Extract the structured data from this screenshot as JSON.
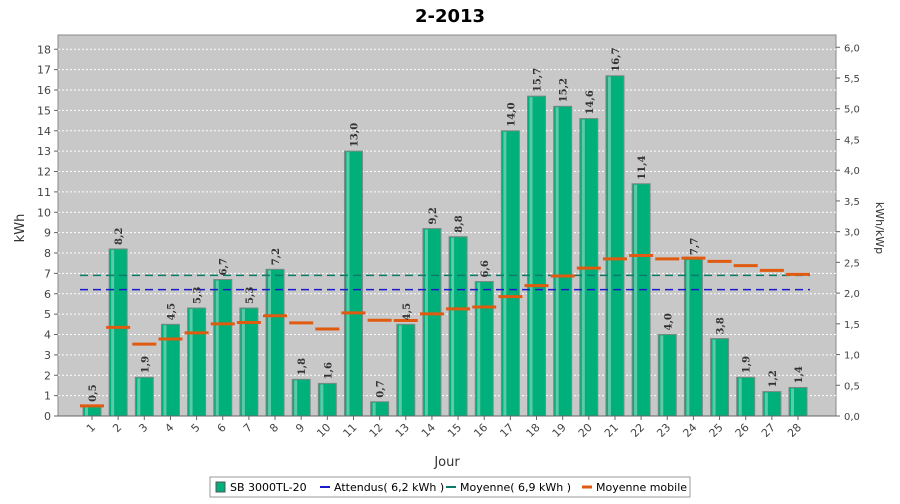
{
  "chart_data": {
    "type": "bar",
    "title": "2-2013",
    "xlabel": "Jour",
    "ylabel": "kWh",
    "ylabel_right": "kWh/kWp",
    "categories": [
      "1",
      "2",
      "3",
      "4",
      "5",
      "6",
      "7",
      "8",
      "9",
      "10",
      "11",
      "12",
      "13",
      "14",
      "15",
      "16",
      "17",
      "18",
      "19",
      "20",
      "21",
      "22",
      "23",
      "24",
      "25",
      "26",
      "27",
      "28"
    ],
    "ylim": [
      0,
      18.7
    ],
    "ylim_right": [
      0,
      6.2
    ],
    "y_ticks": [
      "0",
      "1",
      "2",
      "3",
      "4",
      "5",
      "6",
      "7",
      "8",
      "9",
      "10",
      "11",
      "12",
      "13",
      "14",
      "15",
      "16",
      "17",
      "18"
    ],
    "y_ticks_right": [
      "0,0",
      "0,5",
      "1,0",
      "1,5",
      "2,0",
      "2,5",
      "3,0",
      "3,5",
      "4,0",
      "4,5",
      "5,0",
      "5,5",
      "6,0"
    ],
    "grid": true,
    "legend_position": "bottom",
    "series": [
      {
        "name": "SB 3000TL-20",
        "kind": "bar",
        "color": "#00b07a",
        "values": [
          0.5,
          8.2,
          1.9,
          4.5,
          5.3,
          6.7,
          5.3,
          7.2,
          1.8,
          1.6,
          13.0,
          0.7,
          4.5,
          9.2,
          8.8,
          6.6,
          14.0,
          15.7,
          15.2,
          14.6,
          16.7,
          11.4,
          4.0,
          7.7,
          3.8,
          1.9,
          1.2,
          1.4
        ],
        "labels": [
          "0,5",
          "8,2",
          "1,9",
          "4,5",
          "5,3",
          "6,7",
          "5,3",
          "7,2",
          "1,8",
          "1,6",
          "13,0",
          "0,7",
          "4,5",
          "9,2",
          "8,8",
          "6,6",
          "14,0",
          "15,7",
          "15,2",
          "14,6",
          "16,7",
          "11,4",
          "4,0",
          "7,7",
          "3,8",
          "1,9",
          "1,2",
          "1,4"
        ]
      },
      {
        "name": "Attendus( 6,2 kWh )",
        "kind": "hline",
        "color": "#1a1acc",
        "value": 6.2
      },
      {
        "name": "Moyenne( 6,9 kWh )",
        "kind": "hline",
        "color": "#0a7a6a",
        "value": 6.9
      },
      {
        "name": "Moyenne mobile",
        "kind": "step",
        "color": "#e05a10",
        "values": [
          0.5,
          4.35,
          3.53,
          3.78,
          4.08,
          4.52,
          4.59,
          4.92,
          4.57,
          4.27,
          5.06,
          4.7,
          4.69,
          5.01,
          5.26,
          5.35,
          5.86,
          6.4,
          6.87,
          7.26,
          7.71,
          7.88,
          7.71,
          7.75,
          7.59,
          7.38,
          7.15,
          6.95
        ]
      }
    ]
  },
  "colors": {
    "plot_background": "#c8c8c8",
    "grid": "#ffffff",
    "bar_fill": "#00b07a",
    "bar_edge": "#7a8a84"
  }
}
